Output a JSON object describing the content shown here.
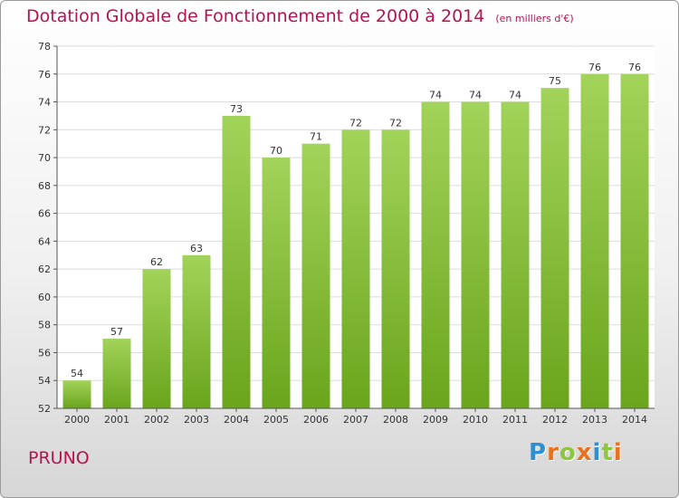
{
  "header": {
    "title": "Dotation Globale de Fonctionnement de 2000 à 2014",
    "subtitle": "(en milliers d'€)"
  },
  "footer": {
    "commune": "PRUNO",
    "brand": "Proxiti",
    "brand_letters": [
      {
        "char": "P",
        "color": "#2f8fd4"
      },
      {
        "char": "r",
        "color": "#e8701e"
      },
      {
        "char": "o",
        "color": "#8dc63f"
      },
      {
        "char": "x",
        "color": "#e8701e"
      },
      {
        "char": "i",
        "color": "#2f8fd4"
      },
      {
        "char": "t",
        "color": "#8dc63f"
      },
      {
        "char": "i",
        "color": "#e8701e"
      }
    ]
  },
  "colors": {
    "accent": "#b5134f",
    "bar_light": "#a2d35a",
    "bar_dark": "#6aa51c",
    "grid": "#dcdcdc"
  },
  "chart_data": {
    "type": "bar",
    "categories": [
      "2000",
      "2001",
      "2002",
      "2003",
      "2004",
      "2005",
      "2006",
      "2007",
      "2008",
      "2009",
      "2010",
      "2011",
      "2012",
      "2013",
      "2014"
    ],
    "values": [
      54,
      57,
      62,
      63,
      73,
      70,
      71,
      72,
      72,
      74,
      74,
      74,
      75,
      76,
      76
    ],
    "title": "Dotation Globale de Fonctionnement de 2000 à 2014",
    "subtitle": "(en milliers d'€)",
    "xlabel": "",
    "ylabel": "",
    "ylim": [
      52,
      78
    ],
    "yticks": [
      52,
      54,
      56,
      58,
      60,
      62,
      64,
      66,
      68,
      70,
      72,
      74,
      76,
      78
    ],
    "grid": true,
    "data_labels": true
  }
}
